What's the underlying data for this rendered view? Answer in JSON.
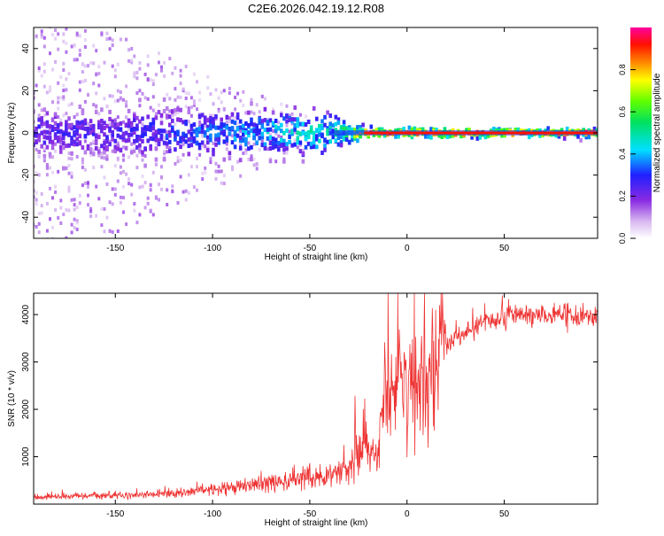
{
  "title": "C2E6.2026.042.19.12.R08",
  "chart_data": [
    {
      "type": "heatmap",
      "xlabel": "Height of straight line (km)",
      "ylabel": "Frequency (Hz)",
      "xlim": [
        -192,
        98
      ],
      "ylim": [
        -50,
        50
      ],
      "xticks": [
        -150,
        -100,
        -50,
        0,
        50
      ],
      "yticks": [
        -40,
        -20,
        0,
        20,
        40
      ],
      "colorbar": {
        "label": "Normalized spectral amplitude",
        "range": [
          0,
          1
        ],
        "ticks": [
          0.0,
          0.2,
          0.4,
          0.6,
          0.8
        ],
        "tick_labels": [
          "0.0",
          "0.2",
          "0.4",
          "0.6",
          "0.8"
        ]
      },
      "description_points": [
        {
          "x": -190,
          "spread_hz": 50,
          "peak": 0.3
        },
        {
          "x": -150,
          "spread_hz": 45,
          "peak": 0.3
        },
        {
          "x": -100,
          "spread_hz": 25,
          "peak": 0.4
        },
        {
          "x": -60,
          "spread_hz": 12,
          "peak": 0.5
        },
        {
          "x": -35,
          "spread_hz": 6,
          "peak": 0.55
        },
        {
          "x": -20,
          "spread_hz": 2,
          "peak": 0.95
        },
        {
          "x": 0,
          "spread_hz": 2,
          "peak": 0.95
        },
        {
          "x": 98,
          "spread_hz": 1.5,
          "peak": 0.95
        }
      ]
    },
    {
      "type": "line",
      "xlabel": "Height of straight line (km)",
      "ylabel": "SNR (10 * v/v)",
      "xlim": [
        -192,
        98
      ],
      "ylim": [
        0,
        4450
      ],
      "xticks": [
        -150,
        -100,
        -50,
        0,
        50
      ],
      "yticks": [
        1000,
        2000,
        3000,
        4000
      ],
      "color": "#ee3333",
      "trend": [
        {
          "x": -192,
          "y": 150
        },
        {
          "x": -130,
          "y": 200
        },
        {
          "x": -100,
          "y": 300
        },
        {
          "x": -80,
          "y": 420
        },
        {
          "x": -60,
          "y": 520
        },
        {
          "x": -40,
          "y": 600
        },
        {
          "x": -30,
          "y": 800
        },
        {
          "x": -25,
          "y": 1300
        },
        {
          "x": -15,
          "y": 1100
        },
        {
          "x": -12,
          "y": 2300
        },
        {
          "x": 0,
          "y": 2600
        },
        {
          "x": 8,
          "y": 2500
        },
        {
          "x": 15,
          "y": 3100
        },
        {
          "x": 25,
          "y": 3500
        },
        {
          "x": 40,
          "y": 3850
        },
        {
          "x": 60,
          "y": 3980
        },
        {
          "x": 98,
          "y": 4000
        }
      ]
    }
  ]
}
